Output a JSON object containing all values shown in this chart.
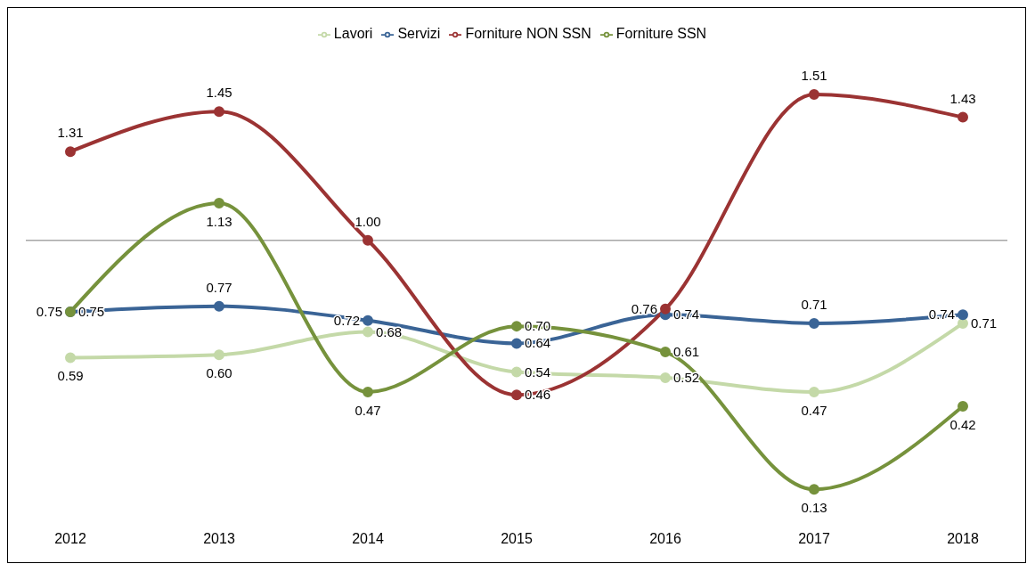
{
  "chart_data": {
    "type": "line",
    "categories": [
      "2012",
      "2013",
      "2014",
      "2015",
      "2016",
      "2017",
      "2018"
    ],
    "series": [
      {
        "name": "Lavori",
        "color": "#c4d9a8",
        "values": [
          0.59,
          0.6,
          0.68,
          0.54,
          0.52,
          0.47,
          0.71
        ],
        "value_labels": [
          "0.59",
          "0.60",
          "0.68",
          "0.54",
          "0.52",
          "0.47",
          "0.71"
        ]
      },
      {
        "name": "Servizi",
        "color": "#3a6496",
        "values": [
          0.75,
          0.77,
          0.72,
          0.64,
          0.74,
          0.71,
          0.74
        ],
        "value_labels": [
          "0.75",
          "0.77",
          "0.72",
          "0.64",
          "0.74",
          "0.71",
          "0.74"
        ]
      },
      {
        "name": "Forniture NON SSN",
        "color": "#9b3333",
        "values": [
          1.31,
          1.45,
          1.0,
          0.46,
          0.76,
          1.51,
          1.43
        ],
        "value_labels": [
          "1.31",
          "1.45",
          "1.00",
          "0.46",
          "0.76",
          "1.51",
          "1.43"
        ]
      },
      {
        "name": "Forniture SSN",
        "color": "#76923c",
        "values": [
          0.75,
          1.13,
          0.47,
          0.7,
          0.61,
          0.13,
          0.42
        ],
        "value_labels": [
          "0.75",
          "1.13",
          "0.47",
          "0.70",
          "0.61",
          "0.13",
          "0.42"
        ]
      }
    ],
    "tick_labels": "x",
    "ref_lines": [
      {
        "axis": "y",
        "value": 1,
        "color": "#a6a6a6"
      }
    ],
    "legend": "top",
    "marker": "circle",
    "line_style": "solid"
  }
}
